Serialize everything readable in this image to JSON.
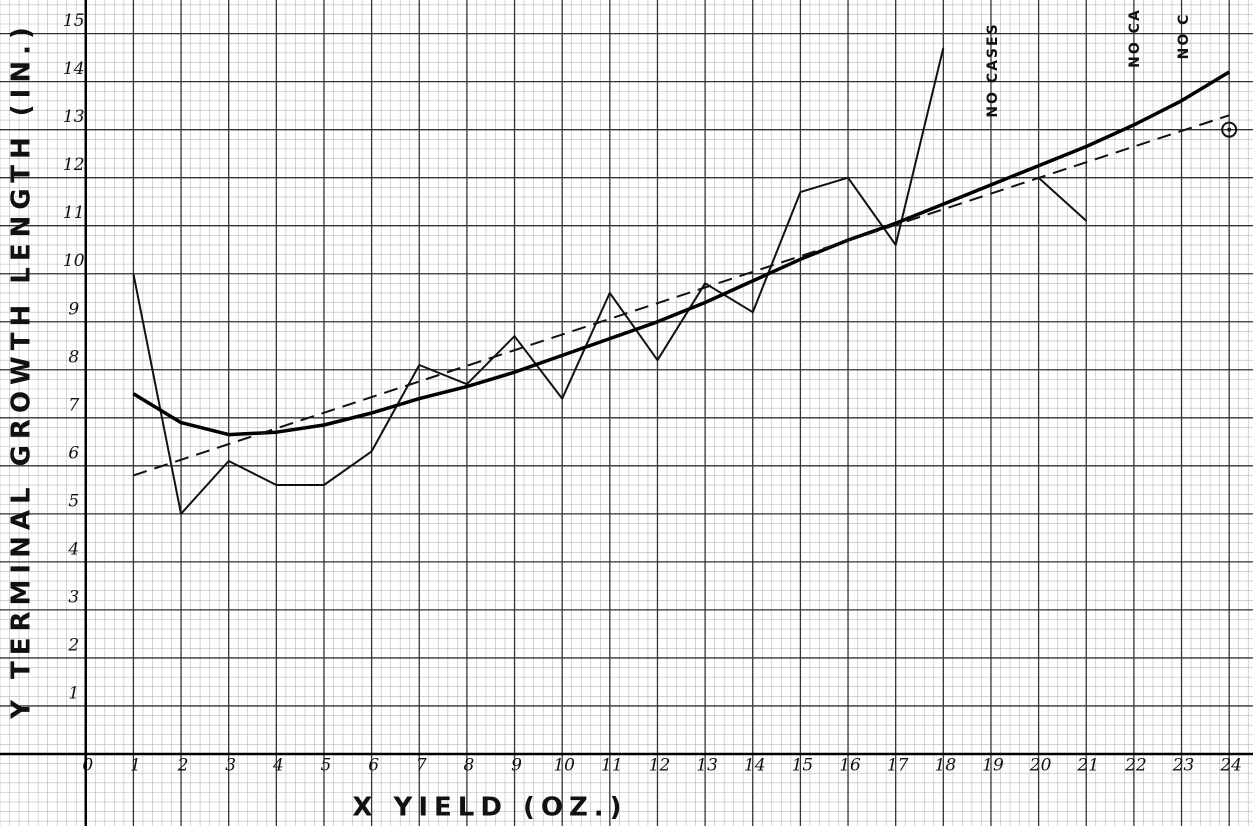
{
  "chart_data": {
    "type": "line",
    "y_label": "Y TERMINAL GROWTH LENGTH (IN.)",
    "x_label": "X YIELD (OZ.)",
    "xlim": [
      -1.8,
      24.5
    ],
    "ylim": [
      -1.5,
      15.7
    ],
    "xticks": [
      0,
      1,
      2,
      3,
      4,
      5,
      6,
      7,
      8,
      9,
      10,
      11,
      12,
      13,
      14,
      15,
      16,
      17,
      18,
      19,
      20,
      21,
      22,
      23,
      24
    ],
    "yticks": [
      1,
      2,
      3,
      4,
      5,
      6,
      7,
      8,
      9,
      10,
      11,
      12,
      13,
      14,
      15
    ],
    "grid": true,
    "x": [
      1,
      2,
      3,
      4,
      5,
      6,
      7,
      8,
      9,
      10,
      11,
      12,
      13,
      14,
      15,
      16,
      17,
      18,
      19,
      20,
      21,
      22,
      23,
      24
    ],
    "series": [
      {
        "color": "#111111",
        "style": "solid",
        "width": 2,
        "values": [
          10.0,
          5.0,
          6.1,
          5.6,
          5.6,
          6.3,
          8.1,
          7.7,
          8.7,
          7.4,
          9.6,
          8.2,
          9.8,
          9.2,
          11.7,
          12.0,
          10.6,
          14.7,
          null,
          12.0,
          11.1,
          null,
          null,
          13.0
        ]
      },
      {
        "color": "#000000",
        "style": "solid",
        "width": 3.5,
        "values": [
          7.5,
          6.9,
          6.65,
          6.7,
          6.85,
          7.1,
          7.4,
          7.65,
          7.95,
          8.3,
          8.65,
          9.0,
          9.4,
          9.85,
          10.3,
          10.7,
          11.05,
          11.45,
          11.85,
          12.25,
          12.65,
          13.1,
          13.6,
          14.2
        ]
      },
      {
        "color": "#111111",
        "style": "dashed",
        "width": 2,
        "x": [
          1,
          24
        ],
        "values": [
          5.8,
          13.3
        ]
      }
    ],
    "annotations": [
      "NO CASES",
      "NO CA",
      "NO C"
    ]
  }
}
